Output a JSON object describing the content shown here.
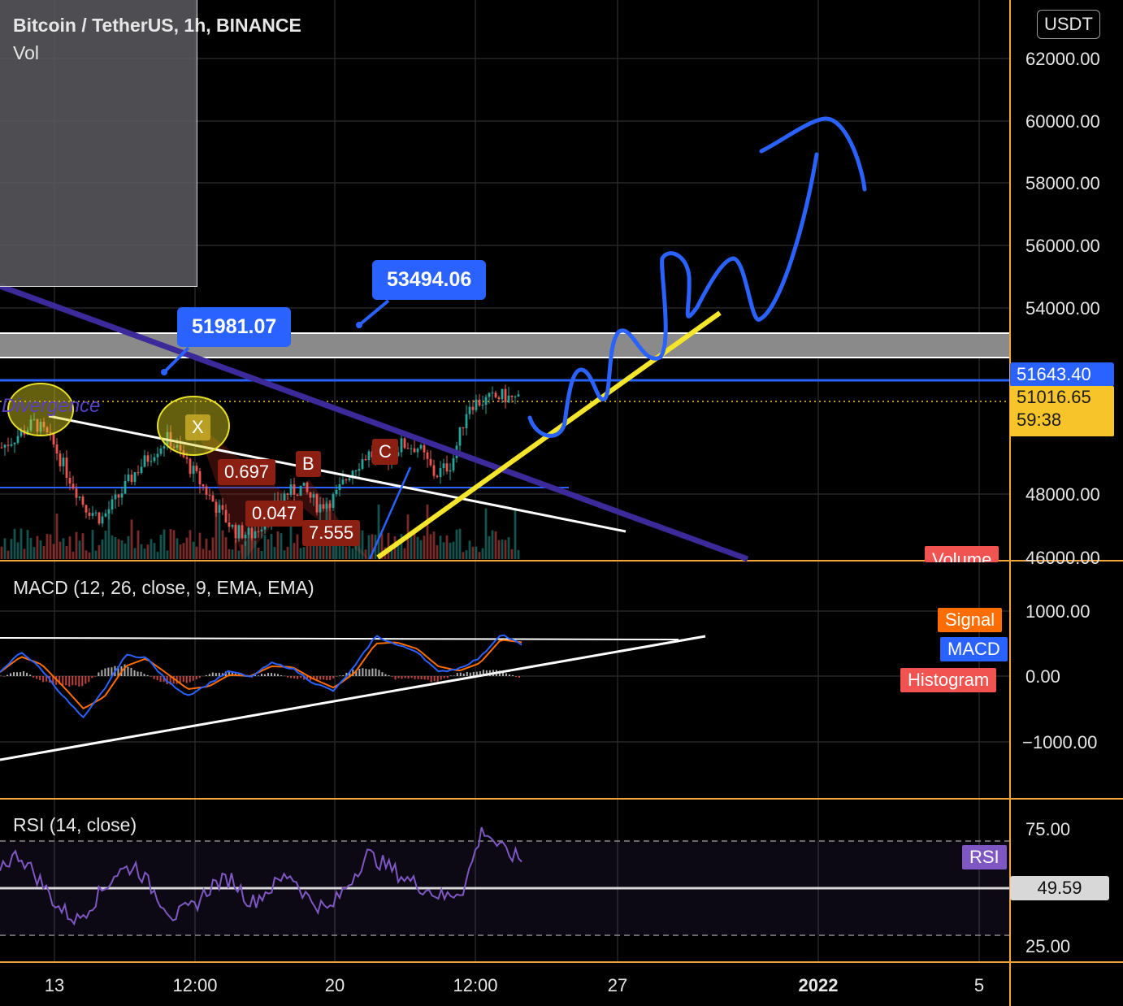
{
  "header": {
    "title": "Bitcoin / TetherUS, 1h, BINANCE",
    "volume_label": "Vol",
    "currency": "USDT"
  },
  "callouts": {
    "left": "51981.07",
    "right": "53494.06"
  },
  "price_axis": {
    "ticks": [
      "62000.00",
      "60000.00",
      "58000.00",
      "56000.00",
      "54000.00",
      "48000.00",
      "46000.00"
    ],
    "level_tag": "51643.40",
    "current_price": "51016.65",
    "countdown": "59:38",
    "volume_tag": "Volume"
  },
  "harmonic": {
    "point_x": "X",
    "point_b": "B",
    "point_c": "C",
    "ratio_xab": "0.697",
    "ratio_abc": "0.047",
    "ratio_bcd": "7.555",
    "divergence_text": "Divergence"
  },
  "macd": {
    "label": "MACD (12, 26, close, 9, EMA, EMA)",
    "ticks": [
      "1000.00",
      "0.00",
      "−1000.00"
    ],
    "series_tags": {
      "signal": "Signal",
      "macd": "MACD",
      "histogram": "Histogram"
    }
  },
  "rsi": {
    "label": "RSI (14, close)",
    "ticks": [
      "75.00",
      "25.00"
    ],
    "value_tag": "49.59",
    "series_tag": "RSI"
  },
  "time_axis": [
    "13",
    "12:00",
    "20",
    "12:00",
    "27",
    "2022",
    "5"
  ],
  "colors": {
    "background": "#000000",
    "accent_blue": "#2962ff",
    "signal_orange": "#ff6d00",
    "histogram_red": "#f05350",
    "rsi_purple": "#7e57c2",
    "projection_yellow": "#f5e52b",
    "downtrend_indigo": "#3d2a9a",
    "current_price_yellow": "#f7c52a",
    "pane_separator": "#f2a33a"
  },
  "chart_data": [
    {
      "type": "candlestick",
      "title": "Bitcoin / TetherUS, 1h, BINANCE",
      "ylim": [
        46000,
        63000
      ],
      "x_ticks": [
        "13",
        "12:00",
        "20",
        "12:00",
        "27",
        "2022",
        "5"
      ],
      "close_series": [
        49500,
        49900,
        50300,
        49700,
        48600,
        47600,
        47200,
        47900,
        48700,
        49300,
        49800,
        49100,
        48300,
        47500,
        46800,
        46700,
        47300,
        48000,
        48200,
        47600,
        47900,
        48800,
        49300,
        49100,
        49600,
        49500,
        48600,
        49000,
        50900,
        51000,
        51150,
        51016
      ],
      "levels": {
        "resistance": 51643.4,
        "callout_low": 51981.07,
        "callout_high": 53494.06,
        "current": 51016.65
      },
      "projection_path": [
        50300,
        50900,
        51400,
        52000,
        53100,
        52600,
        55700,
        53800,
        55800,
        53700,
        59000,
        60100,
        57900
      ]
    },
    {
      "type": "line",
      "title": "MACD (12, 26, close, 9, EMA, EMA)",
      "ylim": [
        -1300,
        1300
      ],
      "series": [
        {
          "name": "MACD",
          "values": [
            50,
            380,
            100,
            -300,
            -650,
            -200,
            320,
            290,
            -80,
            -300,
            -120,
            80,
            -20,
            200,
            120,
            -100,
            -230,
            150,
            620,
            480,
            380,
            60,
            120,
            280,
            650,
            480
          ]
        },
        {
          "name": "Signal",
          "values": [
            60,
            300,
            180,
            -150,
            -500,
            -320,
            150,
            270,
            40,
            -200,
            -160,
            20,
            0,
            150,
            140,
            -40,
            -180,
            50,
            500,
            520,
            420,
            150,
            80,
            200,
            560,
            520
          ]
        },
        {
          "name": "Histogram",
          "values": [
            -10,
            80,
            -80,
            -150,
            -150,
            120,
            170,
            20,
            -120,
            -100,
            40,
            60,
            -20,
            50,
            -20,
            -60,
            -50,
            100,
            120,
            -40,
            -40,
            -90,
            40,
            80,
            90,
            -40
          ]
        }
      ]
    },
    {
      "type": "line",
      "title": "RSI (14, close)",
      "ylim": [
        15,
        90
      ],
      "series": [
        {
          "name": "RSI",
          "values": [
            62,
            68,
            55,
            40,
            33,
            45,
            58,
            62,
            48,
            35,
            40,
            52,
            55,
            42,
            50,
            58,
            44,
            38,
            52,
            68,
            62,
            55,
            50,
            45,
            50,
            82,
            70,
            65
          ]
        }
      ]
    }
  ]
}
